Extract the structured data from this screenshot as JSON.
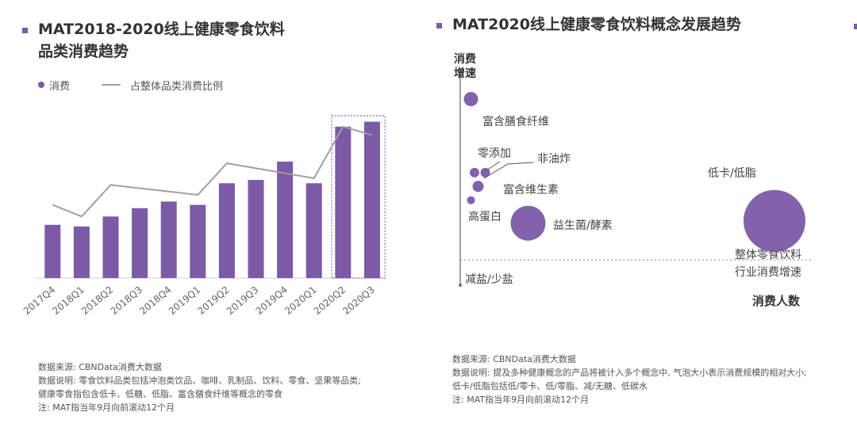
{
  "left": {
    "title_line1": "MAT2018-2020线上健康零食饮料",
    "title_line2": "品类消费趋势",
    "legend": {
      "bar": "消费",
      "line": "占整体品类消费比例"
    },
    "notes": [
      "数据来源: CBNData消费大数据",
      "数据说明: 零食饮料品类包括冲泡类饮品、咖啡、乳制品、饮料、零食、坚果等品类;",
      "健康零食指包含低卡、低糖、低脂、富含膳食纤维等概念的零食",
      "注: MAT指当年9月向前滚动12个月"
    ]
  },
  "right": {
    "title": "MAT2020线上健康零食饮料概念发展趋势",
    "notes": [
      "数据来源: CBNData消费大数据",
      "数据说明: 提及多种健康概念的产品将被计入多个概念中, 气泡大小表示消费规模的相对大小;",
      "低卡/低脂包括低/零卡、低/零脂、减/无糖、低碳水",
      "注: MAT指当年9月向前滚动12个月"
    ]
  },
  "colors": {
    "accent": "#7b5aa6",
    "line": "#a0a0a0",
    "highlight_box": "#8b6bb8"
  },
  "chart_data": [
    {
      "type": "bar",
      "title": "MAT2018-2020线上健康零食饮料品类消费趋势",
      "categories": [
        "2017Q4",
        "2018Q1",
        "2018Q2",
        "2018Q3",
        "2018Q4",
        "2019Q1",
        "2019Q2",
        "2019Q3",
        "2019Q4",
        "2020Q1",
        "2020Q2",
        "2020Q3"
      ],
      "series": [
        {
          "name": "消费",
          "kind": "bar",
          "values": [
            32,
            31,
            37,
            42,
            46,
            44,
            57,
            59,
            70,
            57,
            91,
            94
          ]
        },
        {
          "name": "占整体品类消费比例",
          "kind": "line",
          "values": [
            44,
            37,
            56,
            54,
            52,
            50,
            69,
            66,
            63,
            60,
            91,
            86
          ]
        }
      ],
      "ylim": [
        0,
        110
      ],
      "highlight_categories": [
        "2020Q2",
        "2020Q3"
      ],
      "grid": false,
      "legend_position": "top-left"
    },
    {
      "type": "scatter",
      "title": "MAT2020线上健康零食饮料概念发展趋势",
      "xlabel": "消费人数",
      "ylabel": "消费增速",
      "xlim": [
        0,
        100
      ],
      "ylim": [
        0,
        100
      ],
      "reference_line": {
        "y": 11,
        "label": "整体零食饮料行业消费增速"
      },
      "points": [
        {
          "label": "富含膳食纤维",
          "x": 3,
          "y": 81,
          "size": 9
        },
        {
          "label": "零添加",
          "x": 4,
          "y": 49,
          "size": 6
        },
        {
          "label": "非油炸",
          "x": 7,
          "y": 49,
          "size": 6
        },
        {
          "label": "富含维生素",
          "x": 5,
          "y": 43,
          "size": 7
        },
        {
          "label": "高蛋白",
          "x": 3,
          "y": 37,
          "size": 5
        },
        {
          "label": "益生菌/酵素",
          "x": 19,
          "y": 27,
          "size": 22
        },
        {
          "label": "低卡/低脂",
          "x": 88,
          "y": 28,
          "size": 39
        },
        {
          "label": "减盐/少盐",
          "x": 0,
          "y": 0,
          "size": 2
        }
      ]
    }
  ]
}
